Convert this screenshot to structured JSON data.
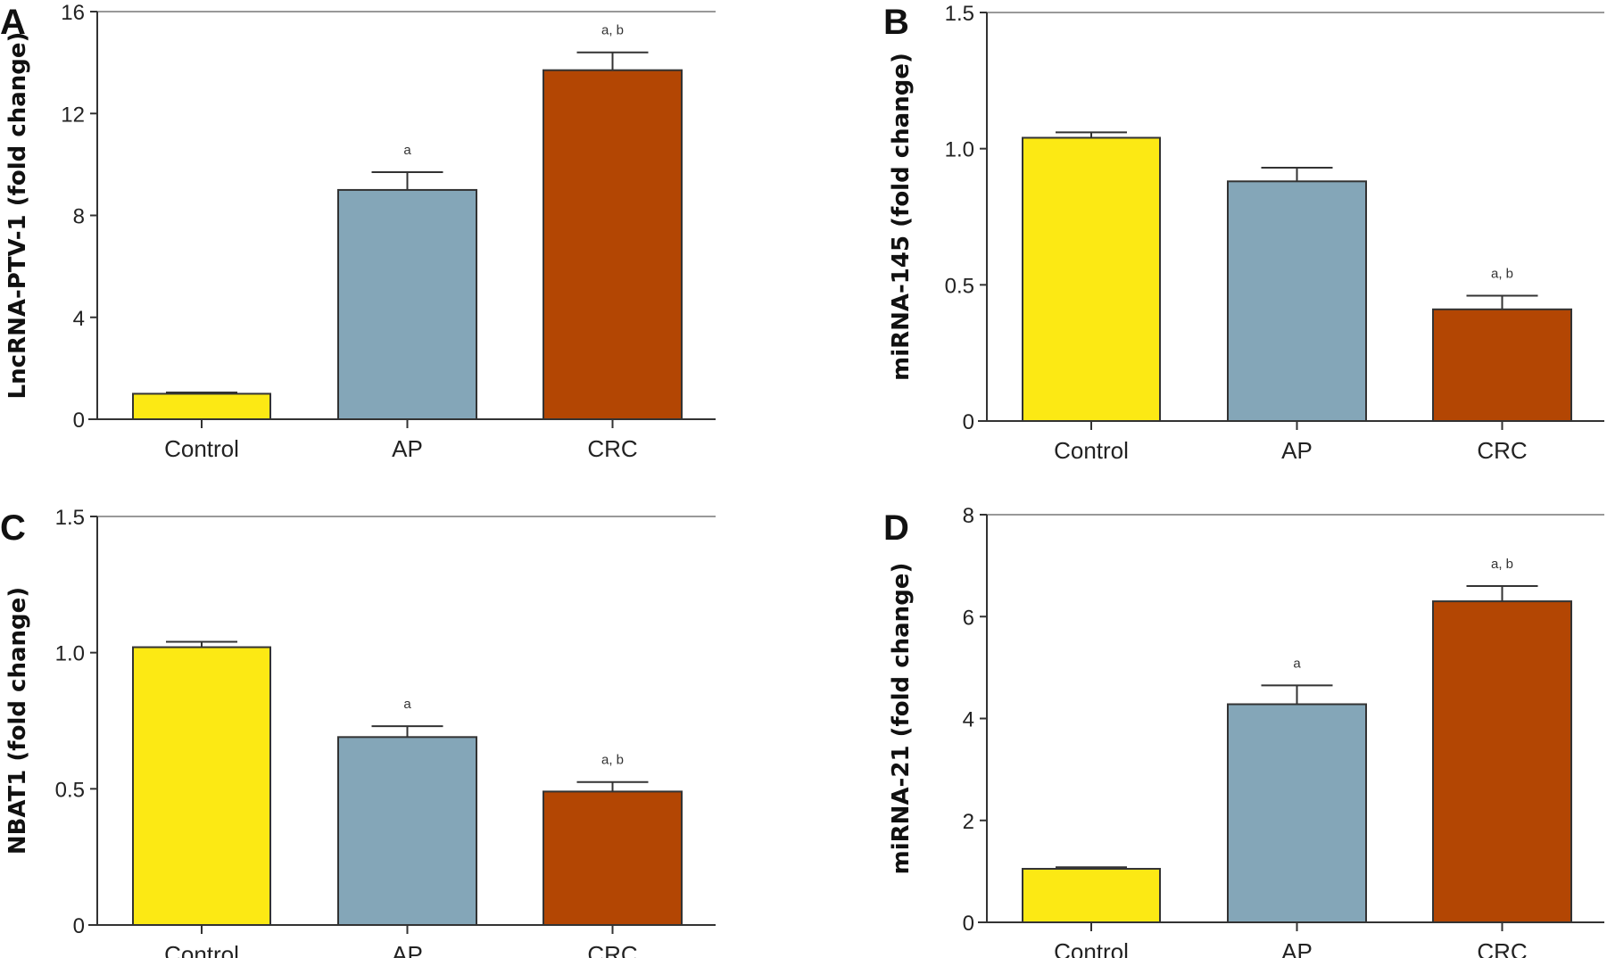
{
  "colors": {
    "Control": "#FCE914",
    "AP": "#84A6B8",
    "CRC": "#B34603"
  },
  "chart_data": [
    {
      "type": "bar",
      "panel": "A",
      "ylabel": "LncRNA-PTV-1 (fold change)",
      "categories": [
        "Control",
        "AP",
        "CRC"
      ],
      "values": [
        1.0,
        9.0,
        13.7
      ],
      "errors": [
        0.05,
        0.7,
        0.7
      ],
      "annotations": [
        "",
        "a",
        "a, b"
      ],
      "ylim": [
        0,
        16
      ],
      "yticks": [
        0,
        4,
        8,
        12,
        16
      ],
      "ytick_labels": [
        "0",
        "4",
        "8",
        "12",
        "16"
      ]
    },
    {
      "type": "bar",
      "panel": "B",
      "ylabel": "miRNA-145 (fold change)",
      "categories": [
        "Control",
        "AP",
        "CRC"
      ],
      "values": [
        1.04,
        0.88,
        0.41
      ],
      "errors": [
        0.02,
        0.05,
        0.05
      ],
      "annotations": [
        "",
        "",
        "a, b"
      ],
      "ylim": [
        0,
        1.5
      ],
      "yticks": [
        0,
        0.5,
        1.0,
        1.5
      ],
      "ytick_labels": [
        "0",
        "0.5",
        "1.0",
        "1.5"
      ]
    },
    {
      "type": "bar",
      "panel": "C",
      "ylabel": "NBAT1 (fold change)",
      "categories": [
        "Control",
        "AP",
        "CRC"
      ],
      "values": [
        1.02,
        0.69,
        0.49
      ],
      "errors": [
        0.02,
        0.04,
        0.035
      ],
      "annotations": [
        "",
        "a",
        "a, b"
      ],
      "ylim": [
        0,
        1.5
      ],
      "yticks": [
        0,
        0.5,
        1.0,
        1.5
      ],
      "ytick_labels": [
        "0",
        "0.5",
        "1.0",
        "1.5"
      ]
    },
    {
      "type": "bar",
      "panel": "D",
      "ylabel": "miRNA-21 (fold change)",
      "categories": [
        "Control",
        "AP",
        "CRC"
      ],
      "values": [
        1.05,
        4.28,
        6.3
      ],
      "errors": [
        0.03,
        0.37,
        0.3
      ],
      "annotations": [
        "",
        "a",
        "a, b"
      ],
      "ylim": [
        0,
        8
      ],
      "yticks": [
        0,
        2,
        4,
        6,
        8
      ],
      "ytick_labels": [
        "0",
        "2",
        "4",
        "6",
        "8"
      ]
    }
  ]
}
